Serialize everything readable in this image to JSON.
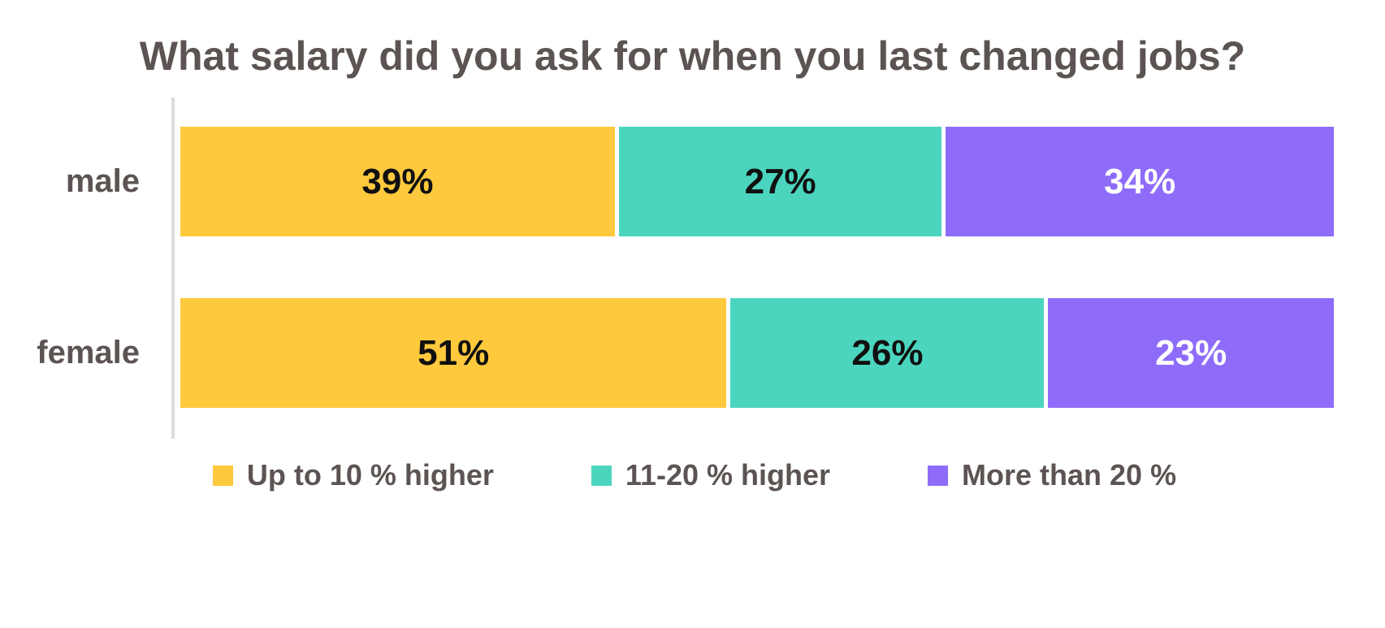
{
  "chart_data": {
    "type": "bar",
    "subtype": "horizontal-stacked-100pct",
    "title": "What salary did you ask for when you last changed jobs?",
    "categories": [
      "male",
      "female"
    ],
    "series": [
      {
        "name": "Up to 10 % higher",
        "color": "#FFC93E",
        "values": [
          39,
          51
        ],
        "labels": [
          "39%",
          "51%"
        ]
      },
      {
        "name": "11-20 % higher",
        "color": "#4CD5BE",
        "values": [
          27,
          26
        ],
        "labels": [
          "27%",
          "26%"
        ]
      },
      {
        "name": "More than 20 %",
        "color": "#8E6CF9",
        "values": [
          34,
          23
        ],
        "labels": [
          "34%",
          "23%"
        ]
      }
    ],
    "xlim": [
      0,
      100
    ],
    "grid": false,
    "legend_position": "bottom",
    "colors": {
      "title_text": "#5C5452",
      "category_text": "#5C5452",
      "legend_text": "#5C5452",
      "data_label_on_light": "#101010",
      "data_label_on_purple": "#FFFFFF",
      "bar_border": "#FFFFFF",
      "axis_line": "#DCDCDC",
      "background": "#FFFFFF"
    }
  }
}
